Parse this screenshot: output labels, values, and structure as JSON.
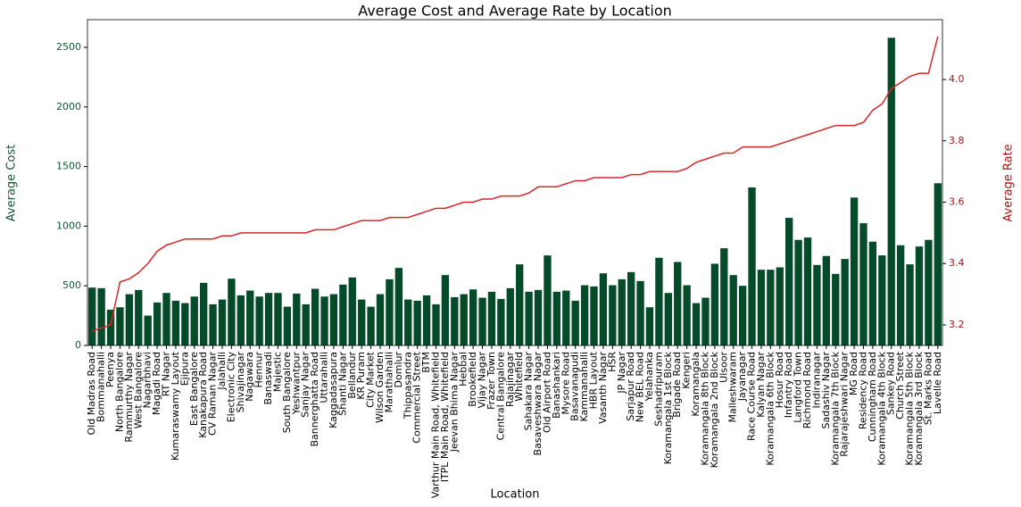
{
  "chart_data": {
    "type": "bar",
    "title": "Average Cost and Average Rate by Location",
    "xlabel": "Location",
    "ylabel": "Average Cost",
    "y2label": "Average Rate",
    "categories": [
      "Old Madras Road",
      "Bommanahalli",
      "Peenya",
      "North Bangalore",
      "Rammurthy Nagar",
      "West Bangalore",
      "Nagarbhavi",
      "Magadi Road",
      "RT Nagar",
      "Kumaraswamy Layout",
      "Ejipura",
      "East Bangalore",
      "Kanakapura Road",
      "CV Raman Nagar",
      "Jalahalli",
      "Electronic City",
      "Shivajinagar",
      "Nagawara",
      "Hennur",
      "Banaswadi",
      "Majestic",
      "South Bangalore",
      "Yeshwantpur",
      "Sanjay Nagar",
      "Bannerghatta Road",
      "Uttarahalli",
      "Kaggadasapura",
      "Shanti Nagar",
      "Bellandur",
      "KR Puram",
      "City Market",
      "Wilson Garden",
      "Marathahalli",
      "Domlur",
      "Thippasandra",
      "Commercial Street",
      "BTM",
      "Varthur Main Road, Whitefield",
      "ITPL Main Road, Whitefield",
      "Jeevan Bhima Nagar",
      "Hebbal",
      "Brookefield",
      "Vijay Nagar",
      "Frazer Town",
      "Central Bangalore",
      "Rajajinagar",
      "Whitefield",
      "Sahakara Nagar",
      "Basaveshwara Nagar",
      "Old Airport Road",
      "Banashankari",
      "Mysore Road",
      "Basavanagudi",
      "Kammanahalli",
      "HBR Layout",
      "Vasanth Nagar",
      "HSR",
      "JP Nagar",
      "Sarjapur Road",
      "New BEL Road",
      "Yelahanka",
      "Seshadripuram",
      "Koramangala 1st Block",
      "Brigade Road",
      "Kengeri",
      "Koramangala",
      "Koramangala 8th Block",
      "Koramangala 2nd Block",
      "Ulsoor",
      "Malleshwaram",
      "Jayanagar",
      "Race Course Road",
      "Kalyan Nagar",
      "Koramangala 6th Block",
      "Hosur Road",
      "Infantry Road",
      "Langford Town",
      "Richmond Road",
      "Indiranagar",
      "Sadashiv Nagar",
      "Koramangala 7th Block",
      "Rajarajeshwari Nagar",
      "MG Road",
      "Residency Road",
      "Cunningham Road",
      "Koramangala 4th Block",
      "Sankey Road",
      "Church Street",
      "Koramangala 5th Block",
      "Koramangala 3rd Block",
      "St. Marks Road",
      "Lavelle Road"
    ],
    "series": [
      {
        "color": "#054a29",
        "values": [
          485,
          480,
          300,
          320,
          430,
          465,
          250,
          360,
          440,
          375,
          355,
          410,
          525,
          345,
          385,
          560,
          420,
          460,
          410,
          440,
          440,
          325,
          435,
          345,
          475,
          410,
          430,
          510,
          570,
          385,
          325,
          430,
          555,
          650,
          385,
          375,
          420,
          345,
          590,
          405,
          430,
          470,
          400,
          450,
          390,
          480,
          680,
          450,
          465,
          755,
          450,
          460,
          375,
          505,
          495,
          605,
          505,
          555,
          615,
          540,
          320,
          735,
          440,
          700,
          505,
          355,
          400,
          685,
          815,
          590,
          500,
          1325,
          635,
          635,
          655,
          1070,
          885,
          905,
          675,
          750,
          600,
          725,
          1240,
          1025,
          870,
          755,
          2580,
          840,
          680,
          830,
          885,
          1360
        ]
      },
      {
        "type": "line",
        "axis": "y2",
        "color": "#d62728",
        "values": [
          3.18,
          3.19,
          3.2,
          3.34,
          3.35,
          3.37,
          3.4,
          3.44,
          3.46,
          3.47,
          3.48,
          3.48,
          3.48,
          3.48,
          3.49,
          3.49,
          3.5,
          3.5,
          3.5,
          3.5,
          3.5,
          3.5,
          3.5,
          3.5,
          3.51,
          3.51,
          3.51,
          3.52,
          3.53,
          3.54,
          3.54,
          3.54,
          3.55,
          3.55,
          3.55,
          3.56,
          3.57,
          3.58,
          3.58,
          3.59,
          3.6,
          3.6,
          3.61,
          3.61,
          3.62,
          3.62,
          3.62,
          3.63,
          3.65,
          3.65,
          3.65,
          3.66,
          3.67,
          3.67,
          3.68,
          3.68,
          3.68,
          3.68,
          3.69,
          3.69,
          3.7,
          3.7,
          3.7,
          3.7,
          3.71,
          3.73,
          3.74,
          3.75,
          3.76,
          3.76,
          3.78,
          3.78,
          3.78,
          3.78,
          3.79,
          3.8,
          3.81,
          3.82,
          3.83,
          3.84,
          3.85,
          3.85,
          3.85,
          3.86,
          3.9,
          3.92,
          3.97,
          3.99,
          4.01,
          4.02,
          4.02,
          4.14
        ]
      }
    ],
    "ylim": [
      0,
      2732
    ],
    "yticks": [
      0,
      500,
      1000,
      1500,
      2000,
      2500
    ],
    "y2lim": [
      3.133,
      4.195
    ],
    "y2ticks": [
      3.2,
      3.4,
      3.6,
      3.8,
      {
        "value": 4,
        "label": "4.0"
      }
    ],
    "ytick_color": "#0b5a2e",
    "y2tick_color": "#a31515",
    "grid": false
  }
}
